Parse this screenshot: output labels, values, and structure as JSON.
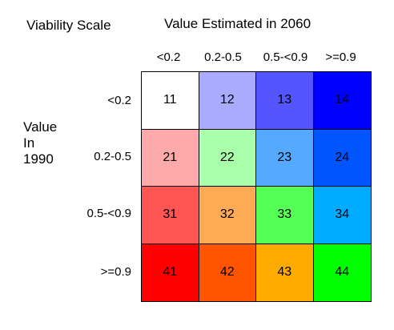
{
  "chart_data": {
    "type": "table",
    "title": "Viability Scale",
    "column_axis_label": "Value Estimated in 2060",
    "row_axis_label": [
      "Value",
      "In",
      "1990"
    ],
    "columns": [
      "<0.2",
      "0.2-0.5",
      "0.5-<0.9",
      ">=0.9"
    ],
    "rows": [
      "<0.2",
      "0.2-0.5",
      "0.5-<0.9",
      ">=0.9"
    ],
    "cells": [
      [
        {
          "value": "11",
          "color": "#ffffff"
        },
        {
          "value": "12",
          "color": "#aaaaff"
        },
        {
          "value": "13",
          "color": "#5555ff"
        },
        {
          "value": "14",
          "color": "#0000ff"
        }
      ],
      [
        {
          "value": "21",
          "color": "#ffaaaa"
        },
        {
          "value": "22",
          "color": "#aaffaa"
        },
        {
          "value": "23",
          "color": "#55aaff"
        },
        {
          "value": "24",
          "color": "#0055ff"
        }
      ],
      [
        {
          "value": "31",
          "color": "#ff5555"
        },
        {
          "value": "32",
          "color": "#ffaa55"
        },
        {
          "value": "33",
          "color": "#55ff55"
        },
        {
          "value": "34",
          "color": "#00aaff"
        }
      ],
      [
        {
          "value": "41",
          "color": "#ff0000"
        },
        {
          "value": "42",
          "color": "#ff5500"
        },
        {
          "value": "43",
          "color": "#ffaa00"
        },
        {
          "value": "44",
          "color": "#00ff00"
        }
      ]
    ]
  }
}
